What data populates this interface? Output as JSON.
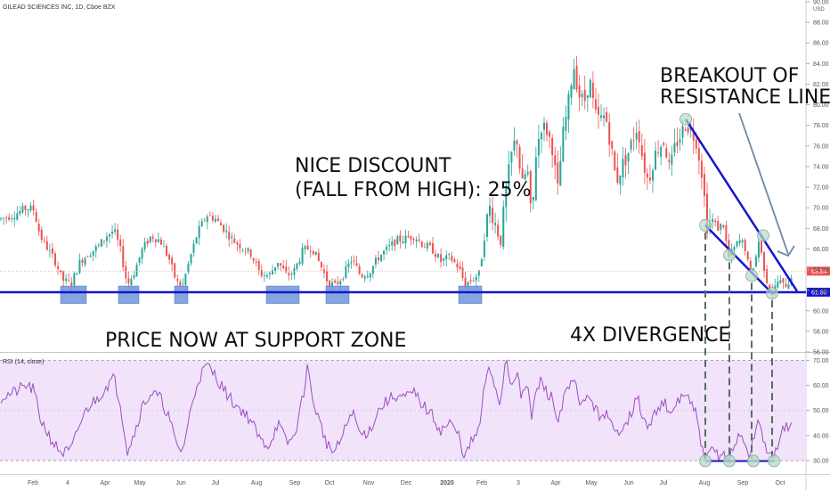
{
  "chart_data": [
    {
      "type": "candlestick",
      "title": "GILEAD SCIENCES INC, 1D, Cboe BZX",
      "currency": "USD",
      "ylim": [
        56,
        90
      ],
      "y_ticks": [
        "90.00",
        "88.00",
        "86.00",
        "84.00",
        "82.00",
        "80.00",
        "78.00",
        "76.00",
        "74.00",
        "72.00",
        "70.00",
        "68.00",
        "66.00",
        "64.00",
        "62.00",
        "60.00",
        "58.00",
        "56.00"
      ],
      "last_price_label": "63.84",
      "support_level": 61.8,
      "support_label": "61.80",
      "colors": {
        "up": "#26a69a",
        "down": "#ef5350",
        "support_line": "#1515cc",
        "support_box": "#6f95d8"
      },
      "anchors": [
        [
          0,
          68.9
        ],
        [
          15,
          69.3
        ],
        [
          30,
          70.0
        ],
        [
          38,
          69.8
        ],
        [
          45,
          67.3
        ],
        [
          55,
          65.8
        ],
        [
          62,
          64.8
        ],
        [
          70,
          63.0
        ],
        [
          80,
          62.6
        ],
        [
          90,
          64.8
        ],
        [
          100,
          65.6
        ],
        [
          110,
          66.2
        ],
        [
          120,
          67.3
        ],
        [
          128,
          67.8
        ],
        [
          135,
          66.0
        ],
        [
          143,
          62.5
        ],
        [
          150,
          63.6
        ],
        [
          160,
          66.0
        ],
        [
          170,
          67.3
        ],
        [
          180,
          66.8
        ],
        [
          190,
          65.0
        ],
        [
          198,
          62.8
        ],
        [
          205,
          62.4
        ],
        [
          213,
          65.0
        ],
        [
          222,
          67.6
        ],
        [
          232,
          69.3
        ],
        [
          242,
          68.9
        ],
        [
          252,
          67.9
        ],
        [
          262,
          66.8
        ],
        [
          272,
          66.2
        ],
        [
          282,
          65.5
        ],
        [
          292,
          63.6
        ],
        [
          302,
          63.4
        ],
        [
          312,
          64.8
        ],
        [
          322,
          63.4
        ],
        [
          330,
          63.8
        ],
        [
          340,
          65.8
        ],
        [
          350,
          66.2
        ],
        [
          360,
          64.4
        ],
        [
          368,
          62.8
        ],
        [
          376,
          62.4
        ],
        [
          385,
          63.4
        ],
        [
          395,
          65.0
        ],
        [
          405,
          63.4
        ],
        [
          415,
          63.8
        ],
        [
          425,
          65.2
        ],
        [
          435,
          66.0
        ],
        [
          445,
          66.8
        ],
        [
          455,
          67.0
        ],
        [
          465,
          67.3
        ],
        [
          475,
          66.4
        ],
        [
          485,
          66.0
        ],
        [
          495,
          64.8
        ],
        [
          505,
          65.2
        ],
        [
          515,
          64.2
        ],
        [
          522,
          62.6
        ],
        [
          530,
          63.0
        ],
        [
          538,
          63.6
        ],
        [
          545,
          68.3
        ],
        [
          550,
          70.0
        ],
        [
          556,
          68.5
        ],
        [
          562,
          66.8
        ],
        [
          568,
          71.5
        ],
        [
          574,
          75.0
        ],
        [
          580,
          77.0
        ],
        [
          586,
          72.0
        ],
        [
          592,
          74.0
        ],
        [
          597,
          68.3
        ],
        [
          602,
          75.5
        ],
        [
          608,
          78.0
        ],
        [
          614,
          77.5
        ],
        [
          620,
          76.0
        ],
        [
          626,
          71.5
        ],
        [
          632,
          77.0
        ],
        [
          638,
          80.0
        ],
        [
          644,
          84.0
        ],
        [
          650,
          81.0
        ],
        [
          656,
          80.2
        ],
        [
          662,
          82.5
        ],
        [
          668,
          79.0
        ],
        [
          674,
          78.5
        ],
        [
          680,
          79.0
        ],
        [
          686,
          76.0
        ],
        [
          692,
          72.5
        ],
        [
          698,
          74.0
        ],
        [
          704,
          75.0
        ],
        [
          710,
          76.5
        ],
        [
          716,
          78.0
        ],
        [
          722,
          74.5
        ],
        [
          728,
          72.5
        ],
        [
          734,
          74.8
        ],
        [
          740,
          76.0
        ],
        [
          746,
          76.5
        ],
        [
          752,
          73.5
        ],
        [
          758,
          76.0
        ],
        [
          764,
          77.0
        ],
        [
          770,
          78.2
        ],
        [
          776,
          77.5
        ],
        [
          782,
          76.5
        ],
        [
          788,
          73.5
        ],
        [
          794,
          68.3
        ],
        [
          800,
          68.8
        ],
        [
          806,
          68.0
        ],
        [
          812,
          68.5
        ],
        [
          818,
          65.2
        ],
        [
          824,
          66.0
        ],
        [
          830,
          66.8
        ],
        [
          836,
          66.4
        ],
        [
          842,
          63.6
        ],
        [
          848,
          64.8
        ],
        [
          852,
          66.8
        ],
        [
          858,
          64.2
        ],
        [
          862,
          62.6
        ],
        [
          868,
          61.8
        ],
        [
          874,
          63.0
        ],
        [
          880,
          62.4
        ],
        [
          886,
          62.8
        ],
        [
          890,
          63.8
        ]
      ]
    },
    {
      "type": "line",
      "title": "RSI (14, close)",
      "ylim": [
        25,
        73
      ],
      "y_ticks": [
        "70.00",
        "60.00",
        "50.00",
        "40.00",
        "30.00"
      ],
      "overbought": 70,
      "oversold": 30,
      "colors": {
        "line": "#9c4fc1",
        "band": "#f1e3fa",
        "divergence_line": "#1515cc",
        "marker": "#b6dcc8"
      },
      "series": [
        {
          "anchors": [
            [
              0,
              55
            ],
            [
              15,
              57
            ],
            [
              30,
              60
            ],
            [
              38,
              58
            ],
            [
              45,
              47
            ],
            [
              55,
              40
            ],
            [
              62,
              36
            ],
            [
              70,
              33
            ],
            [
              80,
              34
            ],
            [
              90,
              45
            ],
            [
              100,
              52
            ],
            [
              110,
              55
            ],
            [
              120,
              60
            ],
            [
              128,
              63
            ],
            [
              135,
              53
            ],
            [
              143,
              34
            ],
            [
              150,
              40
            ],
            [
              160,
              52
            ],
            [
              170,
              57
            ],
            [
              180,
              55
            ],
            [
              190,
              47
            ],
            [
              198,
              36
            ],
            [
              205,
              34
            ],
            [
              213,
              48
            ],
            [
              222,
              62
            ],
            [
              232,
              68
            ],
            [
              242,
              64
            ],
            [
              252,
              58
            ],
            [
              262,
              53
            ],
            [
              272,
              50
            ],
            [
              282,
              46
            ],
            [
              292,
              38
            ],
            [
              302,
              36
            ],
            [
              312,
              45
            ],
            [
              322,
              37
            ],
            [
              330,
              39
            ],
            [
              340,
              55
            ],
            [
              345,
              68
            ],
            [
              350,
              56
            ],
            [
              360,
              44
            ],
            [
              368,
              36
            ],
            [
              376,
              33
            ],
            [
              385,
              40
            ],
            [
              395,
              50
            ],
            [
              405,
              40
            ],
            [
              415,
              42
            ],
            [
              425,
              50
            ],
            [
              435,
              54
            ],
            [
              445,
              56
            ],
            [
              455,
              55
            ],
            [
              465,
              57
            ],
            [
              475,
              52
            ],
            [
              485,
              48
            ],
            [
              495,
              42
            ],
            [
              505,
              45
            ],
            [
              515,
              40
            ],
            [
              522,
              31
            ],
            [
              530,
              38
            ],
            [
              538,
              42
            ],
            [
              545,
              62
            ],
            [
              550,
              66
            ],
            [
              556,
              60
            ],
            [
              562,
              52
            ],
            [
              568,
              72
            ],
            [
              574,
              60
            ],
            [
              580,
              66
            ],
            [
              586,
              54
            ],
            [
              592,
              62
            ],
            [
              597,
              46
            ],
            [
              602,
              58
            ],
            [
              608,
              62
            ],
            [
              614,
              57
            ],
            [
              620,
              55
            ],
            [
              626,
              45
            ],
            [
              632,
              54
            ],
            [
              638,
              58
            ],
            [
              644,
              62
            ],
            [
              650,
              55
            ],
            [
              656,
              52
            ],
            [
              662,
              57
            ],
            [
              668,
              50
            ],
            [
              674,
              48
            ],
            [
              680,
              49
            ],
            [
              686,
              44
            ],
            [
              692,
              40
            ],
            [
              698,
              44
            ],
            [
              704,
              46
            ],
            [
              710,
              50
            ],
            [
              716,
              55
            ],
            [
              722,
              47
            ],
            [
              728,
              42
            ],
            [
              734,
              48
            ],
            [
              740,
              52
            ],
            [
              746,
              54
            ],
            [
              752,
              46
            ],
            [
              758,
              52
            ],
            [
              764,
              55
            ],
            [
              770,
              57
            ],
            [
              776,
              52
            ],
            [
              782,
              48
            ],
            [
              788,
              35
            ],
            [
              794,
              30
            ],
            [
              800,
              35
            ],
            [
              806,
              32
            ],
            [
              812,
              33
            ],
            [
              818,
              30
            ],
            [
              824,
              35
            ],
            [
              830,
              40
            ],
            [
              836,
              38
            ],
            [
              842,
              31
            ],
            [
              848,
              42
            ],
            [
              852,
              46
            ],
            [
              858,
              38
            ],
            [
              862,
              33
            ],
            [
              868,
              30
            ],
            [
              874,
              38
            ],
            [
              880,
              42
            ],
            [
              886,
              44
            ],
            [
              890,
              48
            ]
          ]
        }
      ]
    },
    {
      "type": "axis",
      "x_ticks": [
        {
          "label": "Feb",
          "bold": false
        },
        {
          "label": "4",
          "bold": false
        },
        {
          "label": "Apr",
          "bold": false
        },
        {
          "label": "May",
          "bold": false
        },
        {
          "label": "Jun",
          "bold": false
        },
        {
          "label": "Jul",
          "bold": false
        },
        {
          "label": "Aug",
          "bold": false
        },
        {
          "label": "Sep",
          "bold": false
        },
        {
          "label": "Oct",
          "bold": false
        },
        {
          "label": "Nov",
          "bold": false
        },
        {
          "label": "Dec",
          "bold": false
        },
        {
          "label": "2020",
          "bold": true
        },
        {
          "label": "Feb",
          "bold": false
        },
        {
          "label": "3",
          "bold": false
        },
        {
          "label": "Apr",
          "bold": false
        },
        {
          "label": "May",
          "bold": false
        },
        {
          "label": "Jun",
          "bold": false
        },
        {
          "label": "Jul",
          "bold": false
        },
        {
          "label": "Aug",
          "bold": false
        },
        {
          "label": "Sep",
          "bold": false
        },
        {
          "label": "Oct",
          "bold": false
        }
      ]
    }
  ],
  "annotations": {
    "breakout": [
      "BREAKOUT OF",
      "RESISTANCE LINE"
    ],
    "discount": [
      "NICE DISCOUNT",
      "(FALL FROM HIGH): 25%"
    ],
    "support_zone": "PRICE NOW AT SUPPORT ZONE",
    "divergence": "4X DIVERGENCE"
  }
}
